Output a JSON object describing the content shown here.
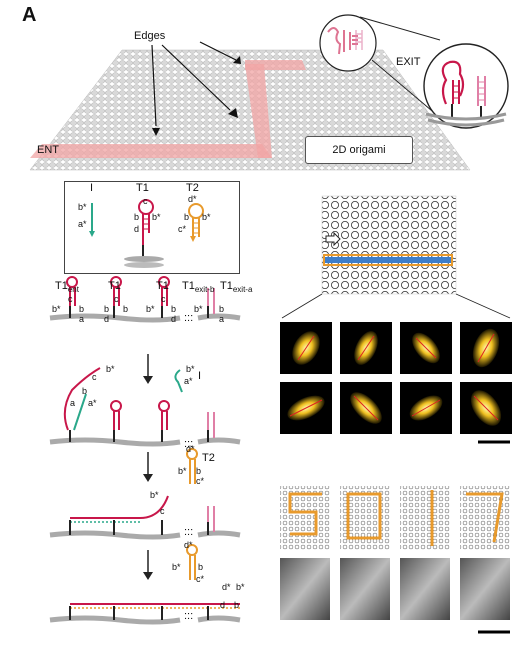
{
  "figure": {
    "panel_letter": "A",
    "top": {
      "edges_label": "Edges",
      "exit_label": "EXIT",
      "ent_label": "ENT",
      "origami_label": "2D origami"
    },
    "legend": {
      "items": [
        {
          "name": "I",
          "labels": [
            "b*",
            "a*"
          ]
        },
        {
          "name": "T1",
          "labels": [
            "c",
            "b",
            "b*",
            "d"
          ]
        },
        {
          "name": "T2",
          "labels": [
            "d*",
            "b",
            "b*",
            "c*"
          ]
        }
      ]
    },
    "steps": {
      "row1_labels": {
        "t1_ent": "T1",
        "t1_ent_sub": "ent",
        "t1": "T1",
        "t1_exit_b": "T1",
        "t1_exit_b_sub": "exit-b",
        "t1_exit_a": "T1",
        "t1_exit_a_sub": "exit-a",
        "c": "c",
        "b": "b",
        "bstar": "b*",
        "d": "d",
        "a": "a",
        "ellipsis": ":::"
      },
      "row2_labels": {
        "c": "c",
        "bstar": "b*",
        "b": "b",
        "a": "a",
        "astar": "a*",
        "I": "I",
        "bstar2": "b*",
        "astar2": "a*"
      },
      "row3_labels": {
        "dstar": "d*",
        "T2": "T2",
        "bstar": "b*",
        "b": "b",
        "cstar": "c*",
        "c": "c"
      },
      "row4_labels": {
        "dstar": "d*",
        "bstar": "b*",
        "b": "b",
        "cstar": "c*",
        "dstar2": "d*",
        "bstar2": "b*",
        "d": "d",
        "b2": "b"
      }
    },
    "colors": {
      "red": "#c8174a",
      "pink": "#e07fa6",
      "orange": "#e89a2c",
      "teal": "#2aa88a",
      "path_pink": "#f2a4a4",
      "blue": "#3d7ecb"
    }
  }
}
